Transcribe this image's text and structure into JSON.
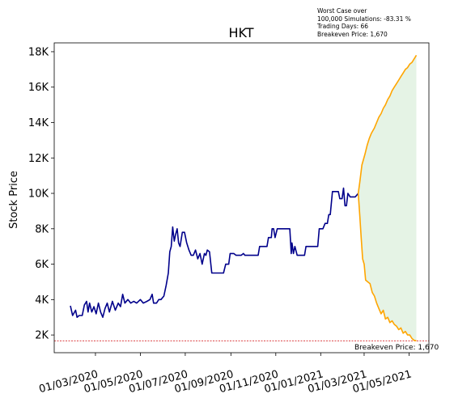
{
  "chart_data": {
    "type": "line",
    "title": "HKT",
    "ylabel": "Stock Price",
    "xlabel": "",
    "annotation_lines": [
      "Worst Case over",
      "100,000 Simulations: -83.31 %",
      "Trading Days: 66",
      "Breakeven Price: 1,670"
    ],
    "breakeven": {
      "value": 1670,
      "label": "Breakeven Price: 1,670",
      "color": "#d62728"
    },
    "xlim": [
      "2020-01-05",
      "2021-05-28"
    ],
    "ylim": [
      1000,
      18500
    ],
    "x_ticks": [
      "2020-03-01",
      "2020-05-01",
      "2020-07-01",
      "2020-09-01",
      "2020-11-01",
      "2021-01-01",
      "2021-03-01",
      "2021-05-01"
    ],
    "x_tick_labels": [
      "01/03/2020",
      "01/05/2020",
      "01/07/2020",
      "01/09/2020",
      "01/11/2020",
      "01/01/2021",
      "01/03/2021",
      "01/05/2021"
    ],
    "y_ticks": [
      2000,
      4000,
      6000,
      8000,
      10000,
      12000,
      14000,
      16000,
      18000
    ],
    "y_tick_labels": [
      "2K",
      "4K",
      "6K",
      "8K",
      "10K",
      "12K",
      "14K",
      "16K",
      "18K"
    ],
    "series": [
      {
        "role": "history",
        "color": "#00008b",
        "points": [
          [
            "2020-01-27",
            3650
          ],
          [
            "2020-01-30",
            3100
          ],
          [
            "2020-02-03",
            3400
          ],
          [
            "2020-02-05",
            3000
          ],
          [
            "2020-02-08",
            3100
          ],
          [
            "2020-02-12",
            3100
          ],
          [
            "2020-02-15",
            3700
          ],
          [
            "2020-02-18",
            3900
          ],
          [
            "2020-02-20",
            3300
          ],
          [
            "2020-02-22",
            3800
          ],
          [
            "2020-02-25",
            3300
          ],
          [
            "2020-02-28",
            3600
          ],
          [
            "2020-03-02",
            3200
          ],
          [
            "2020-03-05",
            3800
          ],
          [
            "2020-03-08",
            3300
          ],
          [
            "2020-03-11",
            3000
          ],
          [
            "2020-03-14",
            3500
          ],
          [
            "2020-03-17",
            3800
          ],
          [
            "2020-03-20",
            3300
          ],
          [
            "2020-03-24",
            3900
          ],
          [
            "2020-03-28",
            3400
          ],
          [
            "2020-04-01",
            3800
          ],
          [
            "2020-04-04",
            3600
          ],
          [
            "2020-04-07",
            4300
          ],
          [
            "2020-04-10",
            3800
          ],
          [
            "2020-04-14",
            4000
          ],
          [
            "2020-04-18",
            3800
          ],
          [
            "2020-04-22",
            3900
          ],
          [
            "2020-04-26",
            3800
          ],
          [
            "2020-05-01",
            4000
          ],
          [
            "2020-05-05",
            3800
          ],
          [
            "2020-05-10",
            3900
          ],
          [
            "2020-05-14",
            4000
          ],
          [
            "2020-05-17",
            4300
          ],
          [
            "2020-05-19",
            3800
          ],
          [
            "2020-05-23",
            3800
          ],
          [
            "2020-05-26",
            4000
          ],
          [
            "2020-05-29",
            4000
          ],
          [
            "2020-06-02",
            4200
          ],
          [
            "2020-06-05",
            4800
          ],
          [
            "2020-06-08",
            5500
          ],
          [
            "2020-06-10",
            6700
          ],
          [
            "2020-06-12",
            7000
          ],
          [
            "2020-06-14",
            8100
          ],
          [
            "2020-06-16",
            7300
          ],
          [
            "2020-06-18",
            7700
          ],
          [
            "2020-06-20",
            8000
          ],
          [
            "2020-06-22",
            7200
          ],
          [
            "2020-06-24",
            7000
          ],
          [
            "2020-06-27",
            7800
          ],
          [
            "2020-06-30",
            7800
          ],
          [
            "2020-07-03",
            7200
          ],
          [
            "2020-07-06",
            6800
          ],
          [
            "2020-07-09",
            6500
          ],
          [
            "2020-07-12",
            6500
          ],
          [
            "2020-07-15",
            6800
          ],
          [
            "2020-07-18",
            6300
          ],
          [
            "2020-07-21",
            6600
          ],
          [
            "2020-07-24",
            6000
          ],
          [
            "2020-07-27",
            6600
          ],
          [
            "2020-07-29",
            6500
          ],
          [
            "2020-07-31",
            6800
          ],
          [
            "2020-08-03",
            6700
          ],
          [
            "2020-08-06",
            5500
          ],
          [
            "2020-08-14",
            5500
          ],
          [
            "2020-08-22",
            5500
          ],
          [
            "2020-08-25",
            6000
          ],
          [
            "2020-08-29",
            6000
          ],
          [
            "2020-08-31",
            6600
          ],
          [
            "2020-09-05",
            6600
          ],
          [
            "2020-09-08",
            6500
          ],
          [
            "2020-09-15",
            6500
          ],
          [
            "2020-09-18",
            6600
          ],
          [
            "2020-09-20",
            6500
          ],
          [
            "2020-10-08",
            6500
          ],
          [
            "2020-10-10",
            7000
          ],
          [
            "2020-10-20",
            7000
          ],
          [
            "2020-10-22",
            7500
          ],
          [
            "2020-10-26",
            7500
          ],
          [
            "2020-10-27",
            8000
          ],
          [
            "2020-10-29",
            8000
          ],
          [
            "2020-10-31",
            7500
          ],
          [
            "2020-11-03",
            8000
          ],
          [
            "2020-11-20",
            8000
          ],
          [
            "2020-11-22",
            6600
          ],
          [
            "2020-11-23",
            7200
          ],
          [
            "2020-11-25",
            6600
          ],
          [
            "2020-11-27",
            7000
          ],
          [
            "2020-11-30",
            6500
          ],
          [
            "2020-12-10",
            6500
          ],
          [
            "2020-12-12",
            7000
          ],
          [
            "2020-12-28",
            7000
          ],
          [
            "2020-12-30",
            8000
          ],
          [
            "2021-01-04",
            8000
          ],
          [
            "2021-01-07",
            8300
          ],
          [
            "2021-01-10",
            8300
          ],
          [
            "2021-01-12",
            8800
          ],
          [
            "2021-01-14",
            8800
          ],
          [
            "2021-01-17",
            10100
          ],
          [
            "2021-01-25",
            10100
          ],
          [
            "2021-01-27",
            9700
          ],
          [
            "2021-01-30",
            9700
          ],
          [
            "2021-02-01",
            10300
          ],
          [
            "2021-02-03",
            9300
          ],
          [
            "2021-02-05",
            9300
          ],
          [
            "2021-02-07",
            10000
          ],
          [
            "2021-02-10",
            9800
          ],
          [
            "2021-02-17",
            9800
          ],
          [
            "2021-02-19",
            9900
          ],
          [
            "2021-02-21",
            10000
          ]
        ]
      },
      {
        "role": "simulated-upper",
        "color": "#ffa500",
        "points": [
          [
            "2021-02-21",
            10000
          ],
          [
            "2021-02-23",
            10600
          ],
          [
            "2021-02-26",
            11600
          ],
          [
            "2021-03-02",
            12200
          ],
          [
            "2021-03-05",
            12700
          ],
          [
            "2021-03-08",
            13100
          ],
          [
            "2021-03-11",
            13400
          ],
          [
            "2021-03-15",
            13700
          ],
          [
            "2021-03-18",
            14000
          ],
          [
            "2021-03-21",
            14300
          ],
          [
            "2021-03-24",
            14500
          ],
          [
            "2021-03-27",
            14800
          ],
          [
            "2021-03-30",
            15000
          ],
          [
            "2021-04-02",
            15300
          ],
          [
            "2021-04-05",
            15500
          ],
          [
            "2021-04-08",
            15800
          ],
          [
            "2021-04-11",
            16000
          ],
          [
            "2021-04-14",
            16200
          ],
          [
            "2021-04-17",
            16400
          ],
          [
            "2021-04-20",
            16600
          ],
          [
            "2021-04-23",
            16800
          ],
          [
            "2021-04-26",
            17000
          ],
          [
            "2021-04-29",
            17100
          ],
          [
            "2021-05-02",
            17300
          ],
          [
            "2021-05-05",
            17400
          ],
          [
            "2021-05-08",
            17600
          ],
          [
            "2021-05-11",
            17800
          ]
        ]
      },
      {
        "role": "simulated-lower",
        "color": "#ffa500",
        "points": [
          [
            "2021-02-21",
            10000
          ],
          [
            "2021-02-23",
            8800
          ],
          [
            "2021-02-25",
            7500
          ],
          [
            "2021-02-27",
            6300
          ],
          [
            "2021-03-01",
            6000
          ],
          [
            "2021-03-03",
            5100
          ],
          [
            "2021-03-06",
            5000
          ],
          [
            "2021-03-09",
            4900
          ],
          [
            "2021-03-12",
            4400
          ],
          [
            "2021-03-15",
            4200
          ],
          [
            "2021-03-18",
            3800
          ],
          [
            "2021-03-21",
            3500
          ],
          [
            "2021-03-24",
            3200
          ],
          [
            "2021-03-27",
            3400
          ],
          [
            "2021-03-30",
            2900
          ],
          [
            "2021-04-02",
            3000
          ],
          [
            "2021-04-05",
            2700
          ],
          [
            "2021-04-08",
            2800
          ],
          [
            "2021-04-11",
            2600
          ],
          [
            "2021-04-14",
            2500
          ],
          [
            "2021-04-17",
            2300
          ],
          [
            "2021-04-20",
            2400
          ],
          [
            "2021-04-23",
            2100
          ],
          [
            "2021-04-26",
            2200
          ],
          [
            "2021-04-29",
            2000
          ],
          [
            "2021-05-02",
            2000
          ],
          [
            "2021-05-05",
            1800
          ],
          [
            "2021-05-08",
            1700
          ],
          [
            "2021-05-11",
            1670
          ]
        ]
      }
    ],
    "fill_between": {
      "color": "#2ca02c",
      "opacity": 0.12
    },
    "grid": false,
    "legend": "none"
  }
}
